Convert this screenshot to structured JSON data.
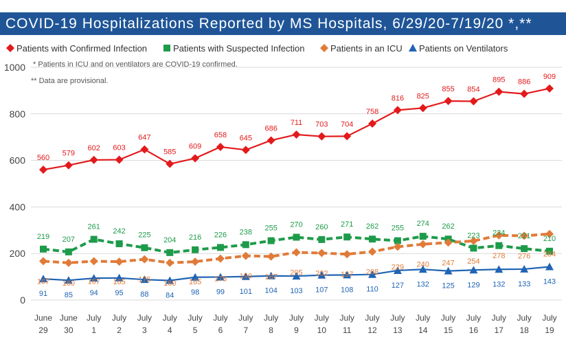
{
  "title": "COVID-19 Hospitalizations Reported by MS Hospitals, 6/29/20-7/19/20 *,**",
  "chart_data": {
    "type": "line",
    "categories": [
      [
        "June",
        "29"
      ],
      [
        "June",
        "30"
      ],
      [
        "July",
        "1"
      ],
      [
        "July",
        "2"
      ],
      [
        "July",
        "3"
      ],
      [
        "July",
        "4"
      ],
      [
        "July",
        "5"
      ],
      [
        "July",
        "6"
      ],
      [
        "July",
        "7"
      ],
      [
        "July",
        "8"
      ],
      [
        "July",
        "9"
      ],
      [
        "July",
        "10"
      ],
      [
        "July",
        "11"
      ],
      [
        "July",
        "12"
      ],
      [
        "July",
        "13"
      ],
      [
        "July",
        "14"
      ],
      [
        "July",
        "15"
      ],
      [
        "July",
        "16"
      ],
      [
        "July",
        "17"
      ],
      [
        "July",
        "18"
      ],
      [
        "July",
        "19"
      ]
    ],
    "ylim": [
      0,
      1000
    ],
    "yticks": [
      0,
      200,
      400,
      600,
      800,
      1000
    ],
    "grid": true,
    "legend_position": "top",
    "notes": [
      "* Patients in ICU and on ventilators are COVID-19 confirmed.",
      "** Data are provisional."
    ],
    "series": [
      {
        "name": "Patients with Confirmed Infection",
        "color": "#e31a1c",
        "marker": "diamond",
        "dash": false,
        "values": [
          560,
          579,
          602,
          603,
          647,
          585,
          609,
          658,
          645,
          686,
          711,
          703,
          704,
          758,
          816,
          825,
          855,
          854,
          895,
          886,
          909
        ]
      },
      {
        "name": "Patients with Suspected Infection",
        "color": "#1e9b4a",
        "marker": "square",
        "dash": true,
        "values": [
          219,
          207,
          261,
          242,
          225,
          204,
          216,
          226,
          238,
          255,
          270,
          260,
          271,
          262,
          255,
          274,
          262,
          223,
          234,
          221,
          210
        ]
      },
      {
        "name": "Patients in an ICU",
        "color": "#e07b39",
        "marker": "diamond",
        "dash": true,
        "values": [
          167,
          160,
          167,
          165,
          175,
          160,
          165,
          178,
          190,
          187,
          205,
          202,
          197,
          208,
          229,
          240,
          247,
          254,
          278,
          276,
          284
        ]
      },
      {
        "name": "Patients on Ventilators",
        "color": "#2064b4",
        "marker": "triangle",
        "dash": false,
        "values": [
          91,
          85,
          94,
          95,
          88,
          84,
          98,
          99,
          101,
          104,
          103,
          107,
          108,
          110,
          127,
          132,
          125,
          129,
          132,
          133,
          143
        ]
      }
    ]
  }
}
